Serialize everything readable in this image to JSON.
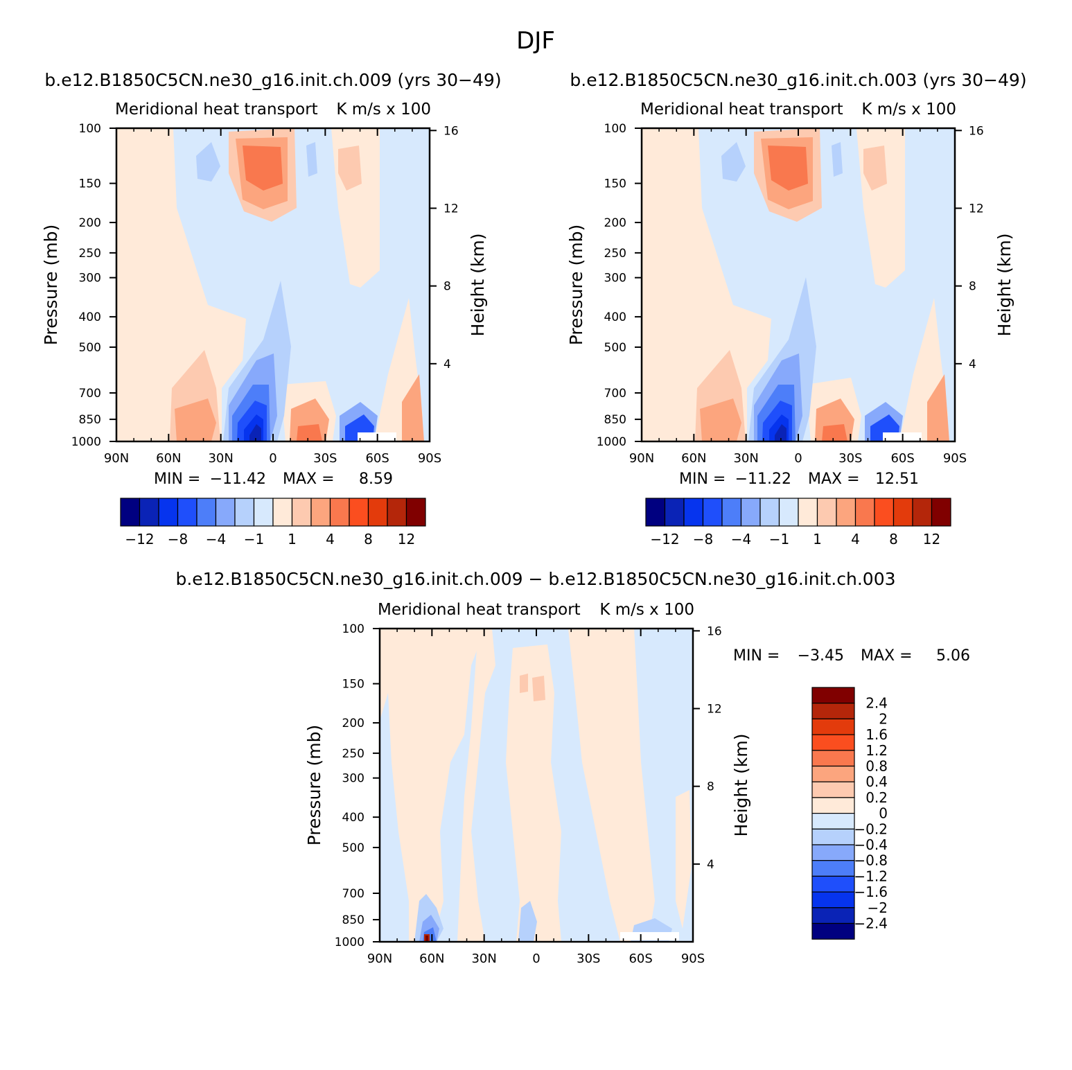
{
  "page_title": "DJF",
  "colors": {
    "positive": [
      "#ffead9",
      "#fdcab0",
      "#fca57e",
      "#f9784e",
      "#fb4e1f",
      "#e33b0c",
      "#b4260a",
      "#800000"
    ],
    "negative": [
      "#d7e9fd",
      "#b6d1fc",
      "#87a9fb",
      "#4d7ef9",
      "#1f4ffb",
      "#0634ee",
      "#0a23b6",
      "#000080"
    ]
  },
  "chart_data": [
    {
      "type": "contour",
      "title": "b.e12.B1850C5CN.ne30_g16.init.ch.009 (yrs 30−49)",
      "subtitle_left": "Meridional heat transport",
      "subtitle_right": "K m/s x 100",
      "xlabel": "",
      "ylabel": "Pressure (mb)",
      "y2label": "Height (km)",
      "x_ticks": [
        "90N",
        "60N",
        "30N",
        "0",
        "30S",
        "60S",
        "90S"
      ],
      "y_ticks": [
        "100",
        "150",
        "200",
        "250",
        "300",
        "400",
        "500",
        "700",
        "850",
        "1000"
      ],
      "y2_ticks": [
        "16",
        "12",
        "8",
        "4"
      ],
      "min_label": "MIN =",
      "min_value": "−11.42",
      "max_label": "MAX =",
      "max_value": "8.59",
      "colorbar_labels": [
        "−12",
        "−8",
        "−4",
        "−1",
        "1",
        "4",
        "8",
        "12"
      ],
      "features": [
        {
          "lat": -10,
          "p": 960,
          "value": -11.42
        },
        {
          "lat": 20,
          "p": 200,
          "value": 7
        },
        {
          "lat": 42,
          "p": 960,
          "value": 5
        },
        {
          "lat": -40,
          "p": 960,
          "value": 4
        },
        {
          "lat": -58,
          "p": 960,
          "value": -7
        }
      ]
    },
    {
      "type": "contour",
      "title": "b.e12.B1850C5CN.ne30_g16.init.ch.003 (yrs 30−49)",
      "subtitle_left": "Meridional heat transport",
      "subtitle_right": "K m/s x 100",
      "xlabel": "",
      "ylabel": "Pressure (mb)",
      "y2label": "Height (km)",
      "x_ticks": [
        "90N",
        "60N",
        "30N",
        "0",
        "30S",
        "60S",
        "90S"
      ],
      "y_ticks": [
        "100",
        "150",
        "200",
        "250",
        "300",
        "400",
        "500",
        "700",
        "850",
        "1000"
      ],
      "y2_ticks": [
        "16",
        "12",
        "8",
        "4"
      ],
      "min_label": "MIN =",
      "min_value": "−11.22",
      "max_label": "MAX =",
      "max_value": "12.51",
      "colorbar_labels": [
        "−12",
        "−8",
        "−4",
        "−1",
        "1",
        "4",
        "8",
        "12"
      ],
      "features": [
        {
          "lat": -10,
          "p": 960,
          "value": -11.22
        },
        {
          "lat": 20,
          "p": 200,
          "value": 7
        },
        {
          "lat": 42,
          "p": 960,
          "value": 5
        },
        {
          "lat": -40,
          "p": 960,
          "value": 4
        },
        {
          "lat": -58,
          "p": 960,
          "value": -7
        }
      ]
    },
    {
      "type": "contour",
      "title": "b.e12.B1850C5CN.ne30_g16.init.ch.009 − b.e12.B1850C5CN.ne30_g16.init.ch.003",
      "subtitle_left": "Meridional heat transport",
      "subtitle_right": "K m/s x 100",
      "xlabel": "",
      "ylabel": "Pressure (mb)",
      "y2label": "Height (km)",
      "x_ticks": [
        "90N",
        "60N",
        "30N",
        "0",
        "30S",
        "60S",
        "90S"
      ],
      "y_ticks": [
        "100",
        "150",
        "200",
        "250",
        "300",
        "400",
        "500",
        "700",
        "850",
        "1000"
      ],
      "y2_ticks": [
        "16",
        "12",
        "8",
        "4"
      ],
      "min_label": "MIN =",
      "min_value": "−3.45",
      "max_label": "MAX =",
      "max_value": "5.06",
      "colorbar_labels": [
        "2.4",
        "2",
        "1.6",
        "1.2",
        "0.8",
        "0.4",
        "0.2",
        "0",
        "−0.2",
        "−0.4",
        "−0.8",
        "−1.2",
        "−1.6",
        "−2",
        "−2.4"
      ],
      "features": [
        {
          "lat": 60,
          "p": 990,
          "value": 5.06
        },
        {
          "lat": 62,
          "p": 960,
          "value": -3.45
        }
      ]
    }
  ]
}
